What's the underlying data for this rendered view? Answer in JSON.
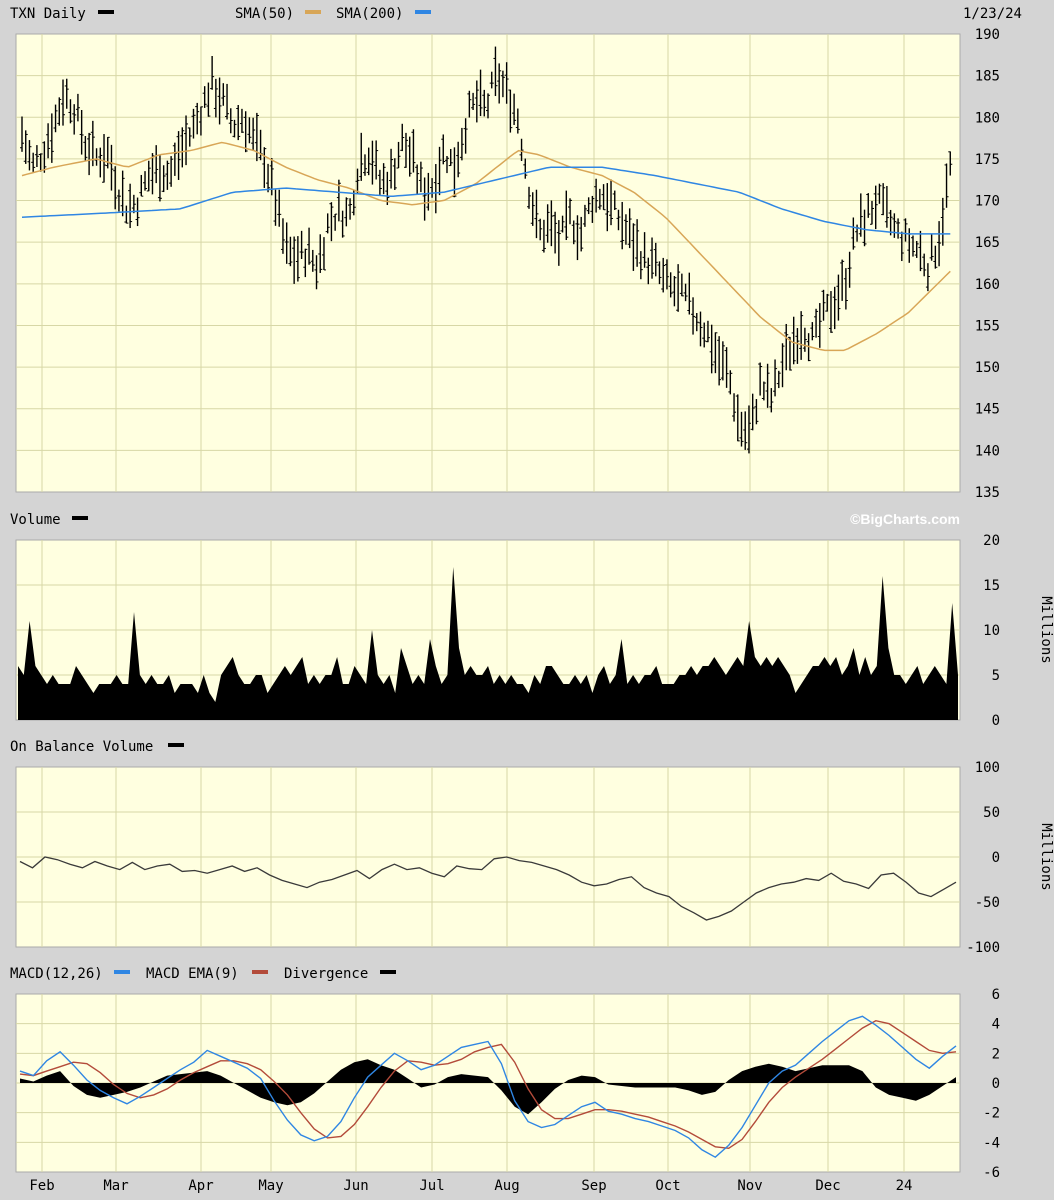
{
  "header": {
    "ticker_label": "TXN Daily",
    "sma50_label": "SMA(50)",
    "sma200_label": "SMA(200)",
    "date": "1/23/24"
  },
  "volume_header": {
    "label": "Volume",
    "brand": "©BigCharts.com"
  },
  "obv_header": {
    "label": "On Balance Volume"
  },
  "macd_header": {
    "macd_label": "MACD(12,26)",
    "ema_label": "MACD EMA(9)",
    "div_label": "Divergence"
  },
  "units": {
    "volume": "Millions",
    "obv": "Millions"
  },
  "colors": {
    "panel_bg": "#ffffe0",
    "grid": "#d7d7a6",
    "header_bg": "#d4d4d4",
    "price": "#000000",
    "sma50": "#d8a657",
    "sma200": "#2f86e3",
    "macd": "#2f86e3",
    "macd_ema": "#b34b3a",
    "divergence": "#000000",
    "obv": "#3a3a3a"
  },
  "chart_data": [
    {
      "type": "ohlc",
      "id": "price",
      "title": "TXN Daily",
      "ylim": [
        135,
        190
      ],
      "yticks": [
        "135",
        "140",
        "145",
        "150",
        "155",
        "160",
        "165",
        "170",
        "175",
        "180",
        "185",
        "190"
      ],
      "xticks": [
        "Feb",
        "Mar",
        "Apr",
        "May",
        "Jun",
        "Jul",
        "Aug",
        "Sep",
        "Oct",
        "Nov",
        "Dec",
        "24"
      ],
      "price_path": [
        [
          0,
          178
        ],
        [
          1,
          174
        ],
        [
          2,
          176
        ],
        [
          3,
          179
        ],
        [
          4,
          183
        ],
        [
          5,
          181
        ],
        [
          6,
          177
        ],
        [
          7,
          175
        ],
        [
          8,
          176
        ],
        [
          9,
          172
        ],
        [
          10,
          169
        ],
        [
          11,
          170
        ],
        [
          12,
          173
        ],
        [
          13,
          174
        ],
        [
          14,
          173
        ],
        [
          15,
          176
        ],
        [
          16,
          178
        ],
        [
          17,
          181
        ],
        [
          18,
          184
        ],
        [
          19,
          182
        ],
        [
          20,
          179
        ],
        [
          21,
          180
        ],
        [
          22,
          177
        ],
        [
          23,
          175
        ],
        [
          24,
          170
        ],
        [
          25,
          164
        ],
        [
          26,
          163
        ],
        [
          27,
          164
        ],
        [
          28,
          162
        ],
        [
          29,
          167
        ],
        [
          30,
          169
        ],
        [
          31,
          168
        ],
        [
          32,
          175
        ],
        [
          33,
          176
        ],
        [
          34,
          172
        ],
        [
          35,
          173
        ],
        [
          36,
          177
        ],
        [
          37,
          175
        ],
        [
          38,
          171
        ],
        [
          39,
          172
        ],
        [
          40,
          176
        ],
        [
          41,
          174
        ],
        [
          42,
          179
        ],
        [
          43,
          182
        ],
        [
          44,
          181
        ],
        [
          45,
          185
        ],
        [
          46,
          183
        ],
        [
          47,
          180
        ],
        [
          48,
          172
        ],
        [
          49,
          166
        ],
        [
          50,
          167
        ],
        [
          51,
          165
        ],
        [
          52,
          168
        ],
        [
          53,
          166
        ],
        [
          54,
          170
        ],
        [
          55,
          171
        ],
        [
          56,
          169
        ],
        [
          57,
          167
        ],
        [
          58,
          165
        ],
        [
          59,
          163
        ],
        [
          60,
          162
        ],
        [
          61,
          160
        ],
        [
          62,
          159
        ],
        [
          63,
          158
        ],
        [
          64,
          156
        ],
        [
          65,
          154
        ],
        [
          66,
          151
        ],
        [
          67,
          149
        ],
        [
          68,
          143
        ],
        [
          69,
          142
        ],
        [
          70,
          148
        ],
        [
          71,
          146
        ],
        [
          72,
          150
        ],
        [
          73,
          153
        ],
        [
          74,
          155
        ],
        [
          75,
          153
        ],
        [
          76,
          156
        ],
        [
          77,
          158
        ],
        [
          78,
          160
        ],
        [
          79,
          166
        ],
        [
          80,
          168
        ],
        [
          81,
          170
        ],
        [
          82,
          168
        ],
        [
          83,
          166
        ],
        [
          84,
          165
        ],
        [
          85,
          164
        ],
        [
          86,
          162
        ],
        [
          87,
          166
        ],
        [
          88,
          174
        ]
      ],
      "sma50": [
        [
          0,
          173
        ],
        [
          3,
          174
        ],
        [
          7,
          175
        ],
        [
          10,
          174
        ],
        [
          13,
          175.5
        ],
        [
          16,
          176
        ],
        [
          19,
          177
        ],
        [
          22,
          176
        ],
        [
          25,
          174
        ],
        [
          28,
          172.5
        ],
        [
          31,
          171.5
        ],
        [
          34,
          170
        ],
        [
          37,
          169.5
        ],
        [
          40,
          170
        ],
        [
          43,
          172
        ],
        [
          46,
          175
        ],
        [
          47,
          176
        ],
        [
          49,
          175.5
        ],
        [
          52,
          174
        ],
        [
          55,
          173
        ],
        [
          58,
          171
        ],
        [
          61,
          168
        ],
        [
          64,
          164
        ],
        [
          67,
          160
        ],
        [
          70,
          156
        ],
        [
          73,
          153
        ],
        [
          76,
          152
        ],
        [
          78,
          152
        ],
        [
          81,
          154
        ],
        [
          84,
          156.5
        ],
        [
          86,
          159
        ],
        [
          88,
          161.5
        ]
      ],
      "sma200": [
        [
          0,
          168
        ],
        [
          8,
          168.5
        ],
        [
          15,
          169
        ],
        [
          20,
          171
        ],
        [
          25,
          171.5
        ],
        [
          30,
          171
        ],
        [
          35,
          170.5
        ],
        [
          40,
          171
        ],
        [
          45,
          172.5
        ],
        [
          50,
          174
        ],
        [
          55,
          174
        ],
        [
          60,
          173
        ],
        [
          64,
          172
        ],
        [
          68,
          171
        ],
        [
          72,
          169
        ],
        [
          76,
          167.5
        ],
        [
          80,
          166.5
        ],
        [
          84,
          166
        ],
        [
          88,
          166
        ]
      ]
    },
    {
      "type": "bar",
      "id": "volume",
      "ylabel": "Millions",
      "ylim": [
        0,
        20
      ],
      "yticks": [
        "0",
        "5",
        "10",
        "15",
        "20"
      ],
      "values": [
        6,
        5,
        11,
        6,
        5,
        4,
        5,
        4,
        4,
        4,
        6,
        5,
        4,
        3,
        4,
        4,
        4,
        5,
        4,
        4,
        12,
        5,
        4,
        5,
        4,
        4,
        5,
        3,
        4,
        4,
        4,
        3,
        5,
        3,
        2,
        5,
        6,
        7,
        5,
        4,
        4,
        5,
        5,
        3,
        4,
        5,
        6,
        5,
        6,
        7,
        4,
        5,
        4,
        5,
        5,
        7,
        4,
        4,
        6,
        5,
        4,
        10,
        5,
        4,
        5,
        3,
        8,
        6,
        4,
        5,
        4,
        9,
        6,
        4,
        5,
        17,
        8,
        5,
        6,
        5,
        5,
        6,
        4,
        5,
        4,
        5,
        4,
        4,
        3,
        5,
        4,
        6,
        6,
        5,
        4,
        4,
        5,
        4,
        5,
        3,
        5,
        6,
        4,
        5,
        9,
        4,
        5,
        4,
        5,
        5,
        6,
        4,
        4,
        4,
        5,
        5,
        6,
        5,
        6,
        6,
        7,
        6,
        5,
        6,
        7,
        6,
        11,
        7,
        6,
        7,
        6,
        7,
        6,
        5,
        3,
        4,
        5,
        6,
        6,
        7,
        6,
        7,
        5,
        6,
        8,
        5,
        7,
        5,
        6,
        16,
        8,
        5,
        5,
        4,
        5,
        6,
        4,
        5,
        6,
        5,
        4,
        13,
        5
      ],
      "volume_max": 20
    },
    {
      "type": "line",
      "id": "obv",
      "ylabel": "Millions",
      "ylim": [
        -100,
        100
      ],
      "yticks": [
        "-100",
        "-50",
        "0",
        "50",
        "100"
      ],
      "values": [
        -5,
        -12,
        0,
        -3,
        -8,
        -12,
        -5,
        -10,
        -14,
        -6,
        -14,
        -10,
        -8,
        -16,
        -15,
        -18,
        -14,
        -10,
        -16,
        -12,
        -20,
        -26,
        -30,
        -34,
        -28,
        -25,
        -20,
        -15,
        -24,
        -14,
        -8,
        -14,
        -12,
        -18,
        -22,
        -10,
        -13,
        -14,
        -2,
        0,
        -4,
        -6,
        -10,
        -14,
        -20,
        -28,
        -32,
        -30,
        -25,
        -22,
        -34,
        -40,
        -44,
        -55,
        -62,
        -70,
        -66,
        -60,
        -50,
        -40,
        -34,
        -30,
        -28,
        -24,
        -26,
        -18,
        -27,
        -30,
        -35,
        -20,
        -18,
        -28,
        -40,
        -44,
        -36,
        -28
      ]
    },
    {
      "type": "line",
      "id": "macd",
      "ylim": [
        -6,
        6
      ],
      "yticks": [
        "-6",
        "-4",
        "-2",
        "0",
        "2",
        "4",
        "6"
      ],
      "series": [
        {
          "name": "MACD(12,26)",
          "values": [
            0.8,
            0.5,
            1.5,
            2.1,
            1.2,
            0.2,
            -0.5,
            -1.0,
            -1.4,
            -0.9,
            -0.3,
            0.3,
            0.9,
            1.4,
            2.2,
            1.8,
            1.4,
            1.0,
            0.3,
            -1.2,
            -2.5,
            -3.5,
            -3.9,
            -3.6,
            -2.6,
            -1.0,
            0.4,
            1.2,
            2.0,
            1.5,
            0.9,
            1.2,
            1.8,
            2.4,
            2.6,
            2.8,
            1.3,
            -1.2,
            -2.6,
            -3.0,
            -2.8,
            -2.2,
            -1.6,
            -1.3,
            -1.9,
            -2.1,
            -2.4,
            -2.6,
            -2.9,
            -3.2,
            -3.7,
            -4.5,
            -5.0,
            -4.2,
            -3.0,
            -1.5,
            0.0,
            0.8,
            1.2,
            2.0,
            2.8,
            3.5,
            4.2,
            4.5,
            3.9,
            3.2,
            2.4,
            1.6,
            1.0,
            1.8,
            2.5
          ]
        },
        {
          "name": "MACD EMA(9)",
          "values": [
            0.6,
            0.5,
            0.8,
            1.1,
            1.4,
            1.3,
            0.7,
            -0.1,
            -0.7,
            -1.0,
            -0.8,
            -0.4,
            0.2,
            0.7,
            1.1,
            1.5,
            1.5,
            1.3,
            0.9,
            0.1,
            -0.8,
            -2.0,
            -3.1,
            -3.7,
            -3.6,
            -2.8,
            -1.6,
            -0.3,
            0.8,
            1.5,
            1.4,
            1.2,
            1.3,
            1.6,
            2.1,
            2.4,
            2.6,
            1.4,
            -0.4,
            -1.8,
            -2.4,
            -2.4,
            -2.1,
            -1.8,
            -1.8,
            -1.9,
            -2.1,
            -2.3,
            -2.6,
            -2.9,
            -3.3,
            -3.8,
            -4.3,
            -4.4,
            -3.8,
            -2.6,
            -1.3,
            -0.3,
            0.4,
            1.0,
            1.6,
            2.3,
            3.0,
            3.7,
            4.2,
            4.0,
            3.4,
            2.8,
            2.2,
            2.0,
            2.1
          ]
        }
      ],
      "divergence": [
        0.3,
        0.1,
        0.5,
        0.8,
        -0.2,
        -0.8,
        -1.0,
        -0.8,
        -0.6,
        -0.3,
        0.1,
        0.5,
        0.6,
        0.7,
        0.8,
        0.5,
        0.0,
        -0.5,
        -1.0,
        -1.3,
        -1.5,
        -1.3,
        -0.7,
        0.1,
        0.9,
        1.4,
        1.6,
        1.2,
        0.9,
        0.3,
        -0.3,
        -0.1,
        0.4,
        0.6,
        0.5,
        0.4,
        -0.5,
        -1.6,
        -2.1,
        -1.3,
        -0.4,
        0.2,
        0.5,
        0.4,
        -0.1,
        -0.2,
        -0.3,
        -0.3,
        -0.3,
        -0.3,
        -0.5,
        -0.8,
        -0.6,
        0.2,
        0.8,
        1.1,
        1.3,
        1.1,
        0.8,
        1.0,
        1.2,
        1.2,
        1.2,
        0.8,
        -0.3,
        -0.8,
        -1.0,
        -1.2,
        -0.8,
        -0.2,
        0.4
      ]
    }
  ]
}
